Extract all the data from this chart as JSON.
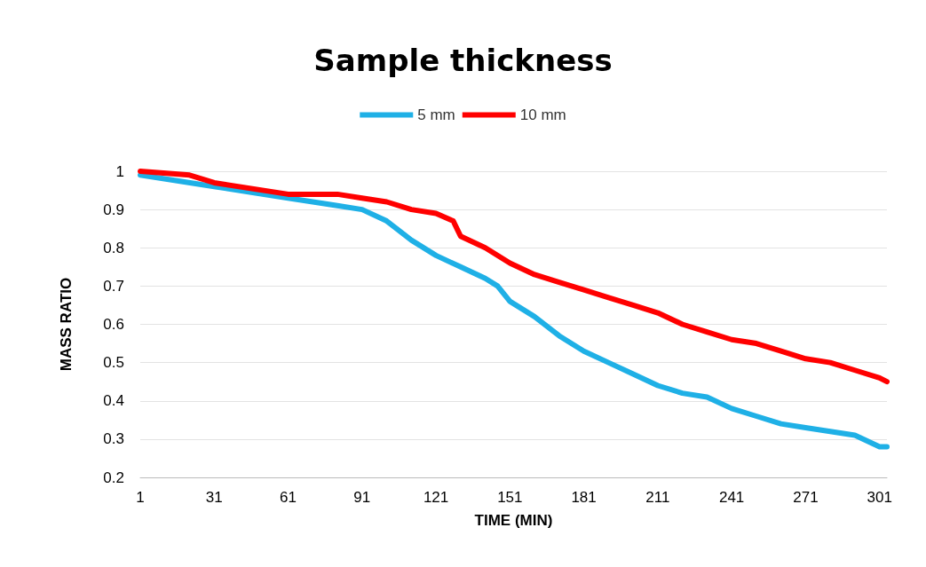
{
  "chart_data": {
    "type": "line",
    "title": "Sample thickness",
    "xlabel": "TIME (MIN)",
    "ylabel": "MASS RATIO",
    "xlim": [
      1,
      304
    ],
    "xticks": [
      1,
      31,
      61,
      91,
      121,
      151,
      181,
      211,
      241,
      271,
      301
    ],
    "ylim": [
      0.2,
      1
    ],
    "yticks": [
      0.2,
      0.3,
      0.4,
      0.5,
      0.6,
      0.7,
      0.8,
      0.9,
      1
    ],
    "grid": "y",
    "legend": "top",
    "marker": "none",
    "line_style": "solid",
    "series": [
      {
        "name": "5 mm",
        "color": "#1fb0e6",
        "x": [
          1,
          31,
          61,
          81,
          91,
          101,
          111,
          121,
          131,
          141,
          146,
          151,
          161,
          171,
          181,
          191,
          201,
          211,
          221,
          231,
          241,
          251,
          261,
          271,
          281,
          291,
          301,
          304
        ],
        "values": [
          0.99,
          0.96,
          0.93,
          0.91,
          0.9,
          0.87,
          0.82,
          0.78,
          0.75,
          0.72,
          0.7,
          0.66,
          0.62,
          0.57,
          0.53,
          0.5,
          0.47,
          0.44,
          0.42,
          0.41,
          0.38,
          0.36,
          0.34,
          0.33,
          0.32,
          0.31,
          0.28,
          0.28
        ]
      },
      {
        "name": "10 mm",
        "color": "#ff0000",
        "x": [
          1,
          21,
          31,
          61,
          81,
          91,
          101,
          111,
          121,
          128,
          131,
          141,
          151,
          161,
          171,
          181,
          191,
          201,
          211,
          221,
          231,
          241,
          251,
          261,
          271,
          281,
          291,
          301,
          304
        ],
        "values": [
          1,
          0.99,
          0.97,
          0.94,
          0.94,
          0.93,
          0.92,
          0.9,
          0.89,
          0.87,
          0.83,
          0.8,
          0.76,
          0.73,
          0.71,
          0.69,
          0.67,
          0.65,
          0.63,
          0.6,
          0.58,
          0.56,
          0.55,
          0.53,
          0.51,
          0.5,
          0.48,
          0.46,
          0.45
        ]
      }
    ]
  }
}
